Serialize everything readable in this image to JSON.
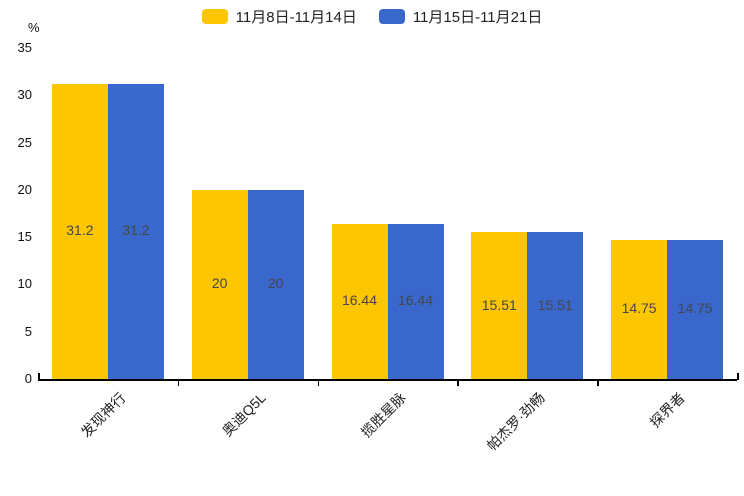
{
  "chart_data": {
    "type": "bar",
    "title": "",
    "ylabel": "%",
    "xlabel": "",
    "ylim": [
      0,
      35
    ],
    "yticks": [
      0,
      5,
      10,
      15,
      20,
      25,
      30,
      35
    ],
    "grid": false,
    "legend_position": "top",
    "categories": [
      "发现神行",
      "奥迪Q5L",
      "揽胜星脉",
      "帕杰罗·劲畅",
      "探界者"
    ],
    "series": [
      {
        "name": "11月8日-11月14日",
        "color": "#FCC602",
        "values": [
          31.2,
          20,
          16.44,
          15.51,
          14.75
        ]
      },
      {
        "name": "11月15日-11月21日",
        "color": "#3A67CC",
        "values": [
          31.2,
          20,
          16.44,
          15.51,
          14.75
        ]
      }
    ],
    "value_labels": [
      "31.2",
      "20",
      "16.44",
      "15.51",
      "14.75"
    ],
    "value_label_color": "#464646",
    "axis_color": "#000000",
    "background_color": "#FFFFFF"
  }
}
